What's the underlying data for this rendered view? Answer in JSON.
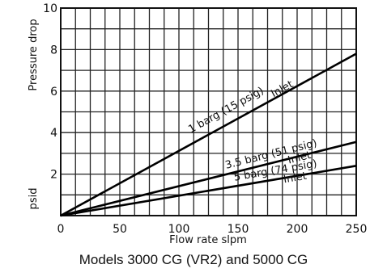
{
  "chart_data": {
    "type": "line",
    "xlabel": "Flow rate slpm",
    "ylabel_top": "Pressure drop",
    "ylabel_bottom": "psid",
    "xlim": [
      0,
      250
    ],
    "ylim": [
      0,
      10
    ],
    "x_ticks": [
      0,
      50,
      100,
      150,
      200,
      250
    ],
    "y_ticks": [
      2,
      4,
      6,
      8,
      10
    ],
    "grid": true,
    "series": [
      {
        "name": "1 barg (15 psig) Inlet",
        "label_line1": "1 barg (15 psig)",
        "label_line2": "Inlet",
        "x": [
          0,
          250
        ],
        "y": [
          0,
          7.8
        ]
      },
      {
        "name": "3.5 barg (51 psig) Inlet",
        "label_line1": "3.5 barg (51 psig)",
        "label_line2": "Inlet",
        "x": [
          0,
          250
        ],
        "y": [
          0,
          3.55
        ]
      },
      {
        "name": "5 barg (74 psig) Inlet",
        "label_line1": "5 barg (74 psig)",
        "label_line2": "Inlet",
        "x": [
          0,
          250
        ],
        "y": [
          0,
          2.4
        ]
      }
    ]
  },
  "caption": "Models 3000 CG (VR2)  and 5000 CG"
}
